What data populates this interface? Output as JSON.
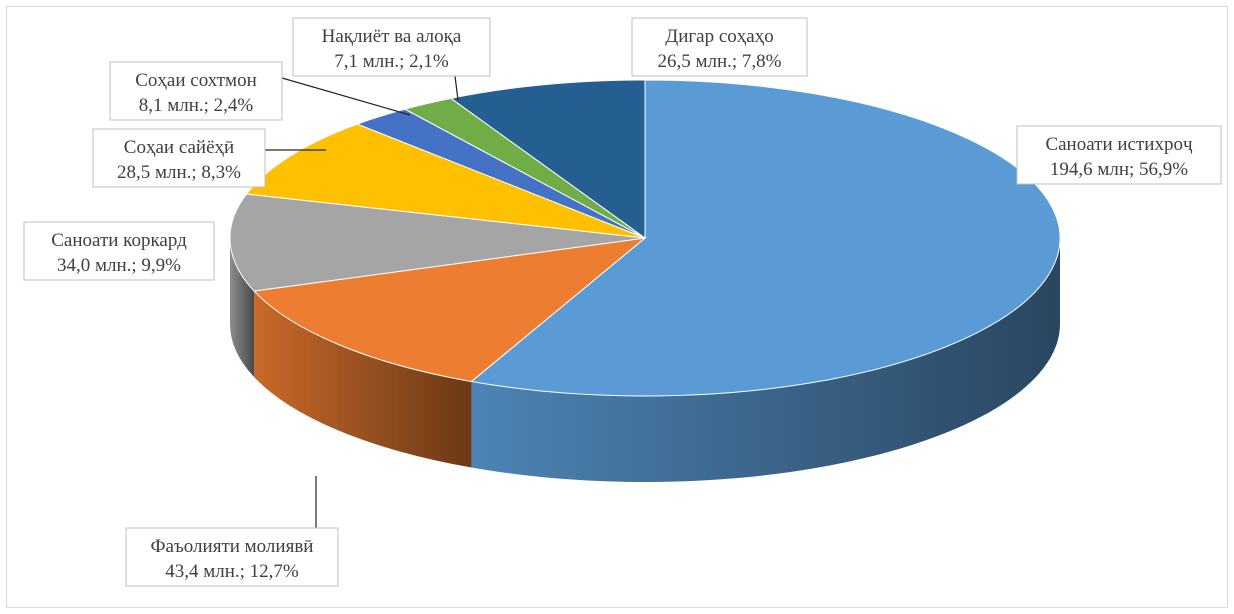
{
  "chart_data": {
    "type": "pie",
    "title": "",
    "style": "3d",
    "slices": [
      {
        "label": "Саноати истихроҷ",
        "value_text": "194,6 млн; 56,9%",
        "value": 194.6,
        "percent": 56.9,
        "color": "#5b9bd5"
      },
      {
        "label": "Фаъолияти молиявӣ",
        "value_text": "43,4 млн.; 12,7%",
        "value": 43.4,
        "percent": 12.7,
        "color": "#ed7d31"
      },
      {
        "label": "Саноати коркард",
        "value_text": "34,0 млн.; 9,9%",
        "value": 34.0,
        "percent": 9.9,
        "color": "#a5a5a5"
      },
      {
        "label": "Соҳаи сайёҳӣ",
        "value_text": "28,5 млн.; 8,3%",
        "value": 28.5,
        "percent": 8.3,
        "color": "#ffc000"
      },
      {
        "label": "Соҳаи сохтмон",
        "value_text": "8,1 млн.; 2,4%",
        "value": 8.1,
        "percent": 2.4,
        "color": "#4472c4"
      },
      {
        "label": "Нақлиёт ва алоқа",
        "value_text": "7,1 млн.; 2,1%",
        "value": 7.1,
        "percent": 2.1,
        "color": "#70ad47"
      },
      {
        "label": "Дигар соҳаҳо",
        "value_text": "26,5 млн.; 7,8%",
        "value": 26.5,
        "percent": 7.8,
        "color": "#255e91"
      }
    ]
  }
}
